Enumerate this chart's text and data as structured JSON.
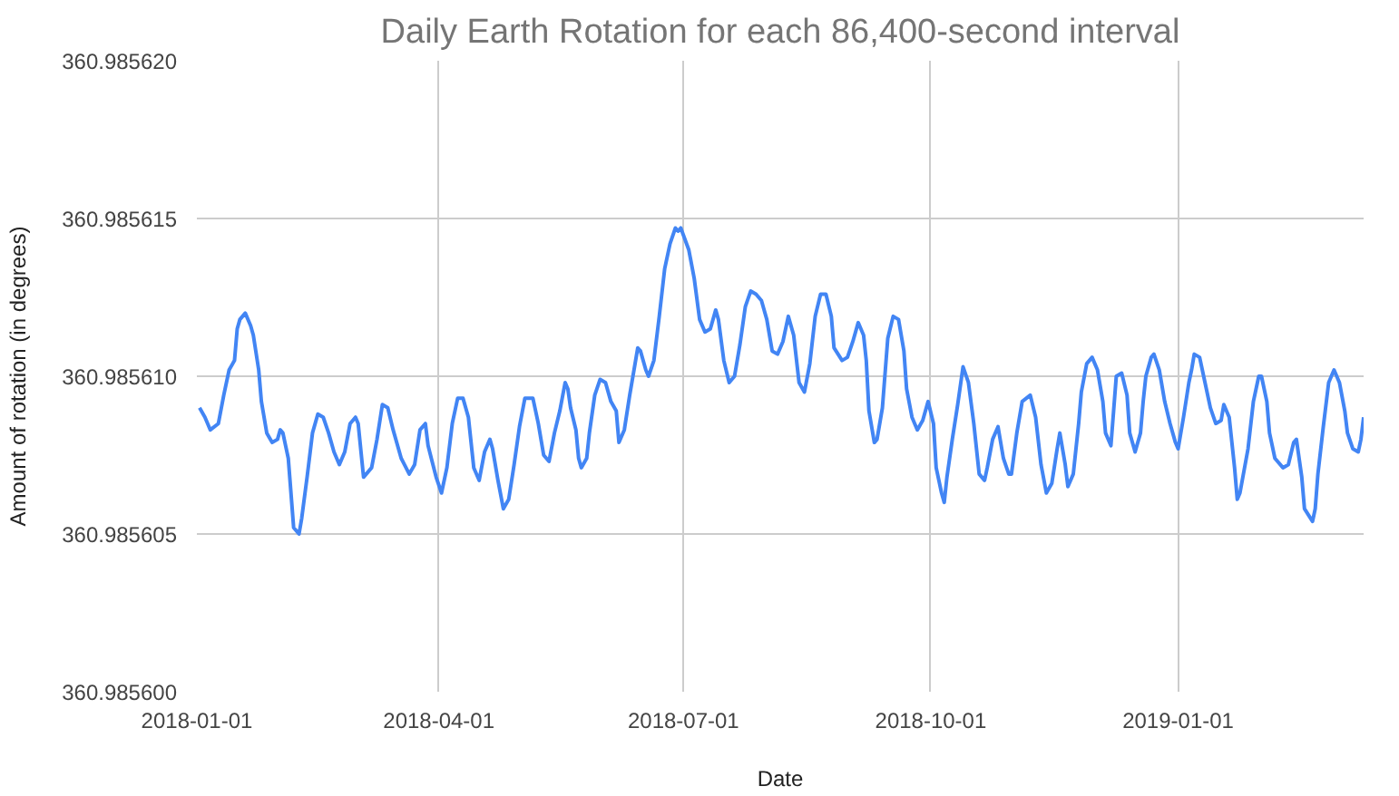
{
  "chart_data": {
    "type": "line",
    "title": "Daily Earth Rotation for each 86,400-second interval",
    "xlabel": "Date",
    "ylabel": "Amount of rotation (in degrees)",
    "x": [
      "2018-01-02",
      "2018-01-04",
      "2018-01-06",
      "2018-01-09",
      "2018-01-11",
      "2018-01-13",
      "2018-01-15",
      "2018-01-16",
      "2018-01-17",
      "2018-01-19",
      "2018-01-21",
      "2018-01-22",
      "2018-01-24",
      "2018-01-25",
      "2018-01-27",
      "2018-01-29",
      "2018-01-31",
      "2018-02-01",
      "2018-02-02",
      "2018-02-04",
      "2018-02-05",
      "2018-02-06",
      "2018-02-08",
      "2018-02-09",
      "2018-02-11",
      "2018-02-13",
      "2018-02-15",
      "2018-02-17",
      "2018-02-19",
      "2018-02-21",
      "2018-02-23",
      "2018-02-25",
      "2018-02-27",
      "2018-03-01",
      "2018-03-02",
      "2018-03-04",
      "2018-03-07",
      "2018-03-09",
      "2018-03-11",
      "2018-03-13",
      "2018-03-15",
      "2018-03-18",
      "2018-03-21",
      "2018-03-23",
      "2018-03-25",
      "2018-03-27",
      "2018-03-28",
      "2018-03-31",
      "2018-04-02",
      "2018-04-04",
      "2018-04-06",
      "2018-04-08",
      "2018-04-10",
      "2018-04-12",
      "2018-04-14",
      "2018-04-16",
      "2018-04-18",
      "2018-04-20",
      "2018-04-21",
      "2018-04-23",
      "2018-04-25",
      "2018-04-27",
      "2018-04-29",
      "2018-05-01",
      "2018-05-03",
      "2018-05-06",
      "2018-05-08",
      "2018-05-10",
      "2018-05-12",
      "2018-05-14",
      "2018-05-16",
      "2018-05-18",
      "2018-05-19",
      "2018-05-20",
      "2018-05-22",
      "2018-05-23",
      "2018-05-24",
      "2018-05-26",
      "2018-05-27",
      "2018-05-29",
      "2018-05-31",
      "2018-06-02",
      "2018-06-04",
      "2018-06-06",
      "2018-06-07",
      "2018-06-09",
      "2018-06-11",
      "2018-06-13",
      "2018-06-14",
      "2018-06-15",
      "2018-06-17",
      "2018-06-18",
      "2018-06-20",
      "2018-06-22",
      "2018-06-24",
      "2018-06-26",
      "2018-06-28",
      "2018-06-29",
      "2018-06-30",
      "2018-07-03",
      "2018-07-05",
      "2018-07-07",
      "2018-07-09",
      "2018-07-11",
      "2018-07-13",
      "2018-07-14",
      "2018-07-16",
      "2018-07-18",
      "2018-07-20",
      "2018-07-22",
      "2018-07-24",
      "2018-07-26",
      "2018-07-28",
      "2018-07-30",
      "2018-08-01",
      "2018-08-03",
      "2018-08-05",
      "2018-08-07",
      "2018-08-09",
      "2018-08-11",
      "2018-08-13",
      "2018-08-15",
      "2018-08-17",
      "2018-08-19",
      "2018-08-21",
      "2018-08-23",
      "2018-08-25",
      "2018-08-26",
      "2018-08-29",
      "2018-08-31",
      "2018-09-02",
      "2018-09-04",
      "2018-09-06",
      "2018-09-07",
      "2018-09-08",
      "2018-09-10",
      "2018-09-11",
      "2018-09-13",
      "2018-09-15",
      "2018-09-17",
      "2018-09-19",
      "2018-09-21",
      "2018-09-22",
      "2018-09-24",
      "2018-09-26",
      "2018-09-28",
      "2018-09-30",
      "2018-10-02",
      "2018-10-03",
      "2018-10-05",
      "2018-10-06",
      "2018-10-07",
      "2018-10-09",
      "2018-10-11",
      "2018-10-13",
      "2018-10-15",
      "2018-10-17",
      "2018-10-19",
      "2018-10-21",
      "2018-10-22",
      "2018-10-24",
      "2018-10-26",
      "2018-10-28",
      "2018-10-30",
      "2018-10-31",
      "2018-11-02",
      "2018-11-04",
      "2018-11-07",
      "2018-11-09",
      "2018-11-11",
      "2018-11-13",
      "2018-11-15",
      "2018-11-17",
      "2018-11-18",
      "2018-11-20",
      "2018-11-21",
      "2018-11-23",
      "2018-11-25",
      "2018-11-26",
      "2018-11-28",
      "2018-11-30",
      "2018-12-02",
      "2018-12-04",
      "2018-12-05",
      "2018-12-07",
      "2018-12-08",
      "2018-12-09",
      "2018-12-11",
      "2018-12-13",
      "2018-12-14",
      "2018-12-16",
      "2018-12-18",
      "2018-12-19",
      "2018-12-20",
      "2018-12-22",
      "2018-12-23",
      "2018-12-25",
      "2018-12-27",
      "2018-12-29",
      "2018-12-31",
      "2019-01-01",
      "2019-01-03",
      "2019-01-05",
      "2019-01-06",
      "2019-01-07",
      "2019-01-09",
      "2019-01-11",
      "2019-01-13",
      "2019-01-15",
      "2019-01-17",
      "2019-01-18",
      "2019-01-20",
      "2019-01-22",
      "2019-01-23",
      "2019-01-24",
      "2019-01-27",
      "2019-01-29",
      "2019-01-31",
      "2019-02-01",
      "2019-02-03",
      "2019-02-04",
      "2019-02-06",
      "2019-02-09",
      "2019-02-11",
      "2019-02-13",
      "2019-02-14",
      "2019-02-16",
      "2019-02-17",
      "2019-02-20",
      "2019-02-21",
      "2019-02-22",
      "2019-02-24",
      "2019-02-26",
      "2019-02-28",
      "2019-03-02",
      "2019-03-04",
      "2019-03-05",
      "2019-03-07",
      "2019-03-09",
      "2019-03-10",
      "2019-03-11"
    ],
    "series": [
      {
        "color": "#4285f4",
        "values": [
          360.985609,
          360.9856087,
          360.9856083,
          360.9856085,
          360.9856094,
          360.9856102,
          360.9856105,
          360.9856115,
          360.9856118,
          360.985612,
          360.9856116,
          360.9856113,
          360.9856102,
          360.9856092,
          360.9856082,
          360.9856079,
          360.985608,
          360.9856083,
          360.9856082,
          360.9856074,
          360.9856063,
          360.9856052,
          360.985605,
          360.9856055,
          360.9856068,
          360.9856082,
          360.9856088,
          360.9856087,
          360.9856082,
          360.9856076,
          360.9856072,
          360.9856076,
          360.9856085,
          360.9856087,
          360.9856085,
          360.9856068,
          360.9856071,
          360.985608,
          360.9856091,
          360.985609,
          360.9856083,
          360.9856074,
          360.9856069,
          360.9856072,
          360.9856083,
          360.9856085,
          360.9856078,
          360.9856068,
          360.9856063,
          360.9856071,
          360.9856085,
          360.9856093,
          360.9856093,
          360.9856087,
          360.9856071,
          360.9856067,
          360.9856076,
          360.985608,
          360.9856077,
          360.9856067,
          360.9856058,
          360.9856061,
          360.9856072,
          360.9856084,
          360.9856093,
          360.9856093,
          360.9856085,
          360.9856075,
          360.9856073,
          360.9856082,
          360.9856089,
          360.9856098,
          360.9856096,
          360.985609,
          360.9856083,
          360.9856074,
          360.9856071,
          360.9856074,
          360.9856082,
          360.9856094,
          360.9856099,
          360.9856098,
          360.9856092,
          360.9856089,
          360.9856079,
          360.9856083,
          360.9856094,
          360.9856104,
          360.9856109,
          360.9856108,
          360.9856102,
          360.98561,
          360.9856105,
          360.9856119,
          360.9856134,
          360.9856142,
          360.9856147,
          360.9856146,
          360.9856147,
          360.985614,
          360.9856131,
          360.9856118,
          360.9856114,
          360.9856115,
          360.9856121,
          360.9856118,
          360.9856105,
          360.9856098,
          360.98561,
          360.985611,
          360.9856122,
          360.9856127,
          360.9856126,
          360.9856124,
          360.9856118,
          360.9856108,
          360.9856107,
          360.9856111,
          360.9856119,
          360.9856113,
          360.9856098,
          360.9856095,
          360.9856104,
          360.9856119,
          360.9856126,
          360.9856126,
          360.9856119,
          360.9856109,
          360.9856105,
          360.9856106,
          360.9856111,
          360.9856117,
          360.9856113,
          360.9856105,
          360.9856089,
          360.9856079,
          360.985608,
          360.985609,
          360.9856112,
          360.9856119,
          360.9856118,
          360.9856108,
          360.9856096,
          360.9856087,
          360.9856083,
          360.9856086,
          360.9856092,
          360.9856085,
          360.9856071,
          360.9856063,
          360.985606,
          360.9856068,
          360.985608,
          360.9856091,
          360.9856103,
          360.9856098,
          360.9856085,
          360.9856069,
          360.9856067,
          360.9856071,
          360.985608,
          360.9856084,
          360.9856074,
          360.9856069,
          360.9856069,
          360.9856082,
          360.9856092,
          360.9856094,
          360.9856087,
          360.9856072,
          360.9856063,
          360.9856066,
          360.9856077,
          360.9856082,
          360.9856072,
          360.9856065,
          360.9856069,
          360.9856085,
          360.9856095,
          360.9856104,
          360.9856106,
          360.9856102,
          360.9856092,
          360.9856082,
          360.9856078,
          360.9856089,
          360.98561,
          360.9856101,
          360.9856094,
          360.9856082,
          360.9856076,
          360.9856082,
          360.9856092,
          360.98561,
          360.9856106,
          360.9856107,
          360.9856102,
          360.9856092,
          360.9856085,
          360.9856079,
          360.9856077,
          360.9856087,
          360.9856098,
          360.9856102,
          360.9856107,
          360.9856106,
          360.9856098,
          360.985609,
          360.9856085,
          360.9856086,
          360.9856091,
          360.9856087,
          360.9856071,
          360.9856061,
          360.9856063,
          360.9856077,
          360.9856092,
          360.98561,
          360.98561,
          360.9856092,
          360.9856082,
          360.9856074,
          360.9856071,
          360.9856072,
          360.9856079,
          360.985608,
          360.9856068,
          360.9856058,
          360.9856054,
          360.9856058,
          360.9856069,
          360.9856084,
          360.9856098,
          360.9856102,
          360.9856098,
          360.9856089,
          360.9856082,
          360.9856077,
          360.9856076,
          360.985608,
          360.9856087
        ]
      }
    ],
    "xlim": [
      "2018-01-01",
      "2019-03-11"
    ],
    "xticks": [
      {
        "value": "2018-01-01",
        "label": "2018-01-01"
      },
      {
        "value": "2018-04-01",
        "label": "2018-04-01"
      },
      {
        "value": "2018-07-01",
        "label": "2018-07-01"
      },
      {
        "value": "2018-10-01",
        "label": "2018-10-01"
      },
      {
        "value": "2019-01-01",
        "label": "2019-01-01"
      }
    ],
    "ylim": [
      360.9856,
      360.98562
    ],
    "yticks": [
      {
        "value": 360.9856,
        "label": "360.985600"
      },
      {
        "value": 360.985605,
        "label": "360.985605"
      },
      {
        "value": 360.98561,
        "label": "360.985610"
      },
      {
        "value": 360.985615,
        "label": "360.985615"
      },
      {
        "value": 360.98562,
        "label": "360.985620"
      }
    ],
    "grid": true,
    "marker": "none",
    "line_style": "solid"
  }
}
